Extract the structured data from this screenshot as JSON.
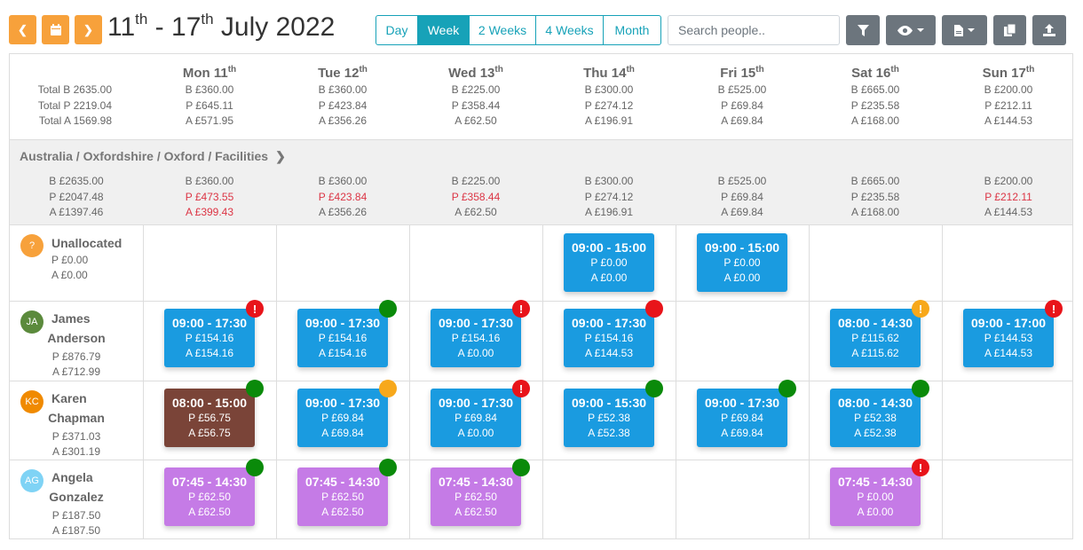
{
  "toolbar": {
    "title_part1": "11",
    "title_sup1": "th",
    "title_mid": " - 17",
    "title_sup2": "th",
    "title_part2": " July 2022",
    "views": [
      "Day",
      "Week",
      "2 Weeks",
      "4 Weeks",
      "Month"
    ],
    "active_view": "Week",
    "search_placeholder": "Search people.."
  },
  "totals": {
    "label": [
      "Total B 2635.00",
      "Total P 2219.04",
      "Total A 1569.98"
    ],
    "days": [
      {
        "name": "Mon 11",
        "sup": "th",
        "b": "B £360.00",
        "p": "P £645.11",
        "a": "A £571.95"
      },
      {
        "name": "Tue 12",
        "sup": "th",
        "b": "B £360.00",
        "p": "P £423.84",
        "a": "A £356.26"
      },
      {
        "name": "Wed 13",
        "sup": "th",
        "b": "B £225.00",
        "p": "P £358.44",
        "a": "A £62.50"
      },
      {
        "name": "Thu 14",
        "sup": "th",
        "b": "B £300.00",
        "p": "P £274.12",
        "a": "A £196.91"
      },
      {
        "name": "Fri 15",
        "sup": "th",
        "b": "B £525.00",
        "p": "P £69.84",
        "a": "A £69.84"
      },
      {
        "name": "Sat 16",
        "sup": "th",
        "b": "B £665.00",
        "p": "P £235.58",
        "a": "A £168.00"
      },
      {
        "name": "Sun 17",
        "sup": "th",
        "b": "B £200.00",
        "p": "P £212.11",
        "a": "A £144.53"
      }
    ]
  },
  "group": {
    "path": "Australia / Oxfordshire / Oxford / Facilities",
    "label": [
      "B £2635.00",
      "P £2047.48",
      "A £1397.46"
    ],
    "days": [
      {
        "b": "B £360.00",
        "p": "P £473.55",
        "a": "A £399.43",
        "p_red": true,
        "a_red": true
      },
      {
        "b": "B £360.00",
        "p": "P £423.84",
        "a": "A £356.26",
        "p_red": true,
        "a_red": false
      },
      {
        "b": "B £225.00",
        "p": "P £358.44",
        "a": "A £62.50",
        "p_red": true,
        "a_red": false
      },
      {
        "b": "B £300.00",
        "p": "P £274.12",
        "a": "A £196.91",
        "p_red": false,
        "a_red": false
      },
      {
        "b": "B £525.00",
        "p": "P £69.84",
        "a": "A £69.84",
        "p_red": false,
        "a_red": false
      },
      {
        "b": "B £665.00",
        "p": "P £235.58",
        "a": "A £168.00",
        "p_red": false,
        "a_red": false
      },
      {
        "b": "B £200.00",
        "p": "P £212.11",
        "a": "A £144.53",
        "p_red": true,
        "a_red": false
      }
    ]
  },
  "people": [
    {
      "initials": "?",
      "avatar_color": "#f7a13b",
      "name1": "Unallocated",
      "name2": "",
      "p": "P £0.00",
      "a": "A £0.00",
      "shifts": [
        {
          "day": 3,
          "time": "09:00 - 15:00",
          "p": "P £0.00",
          "a": "A £0.00",
          "color": "#1a9be0",
          "badge": null
        },
        {
          "day": 4,
          "time": "09:00 - 15:00",
          "p": "P £0.00",
          "a": "A £0.00",
          "color": "#1a9be0",
          "badge": null
        }
      ]
    },
    {
      "initials": "JA",
      "avatar_color": "#5b8a3c",
      "name1": "James",
      "name2": "Anderson",
      "p": "P £876.79",
      "a": "A £712.99",
      "shifts": [
        {
          "day": 0,
          "time": "09:00 - 17:30",
          "p": "P £154.16",
          "a": "A £154.16",
          "color": "#1a9be0",
          "badge": "red-alert"
        },
        {
          "day": 1,
          "time": "09:00 - 17:30",
          "p": "P £154.16",
          "a": "A £154.16",
          "color": "#1a9be0",
          "badge": "green"
        },
        {
          "day": 2,
          "time": "09:00 - 17:30",
          "p": "P £154.16",
          "a": "A £0.00",
          "color": "#1a9be0",
          "badge": "red-alert"
        },
        {
          "day": 3,
          "time": "09:00 - 17:30",
          "p": "P £154.16",
          "a": "A £144.53",
          "color": "#1a9be0",
          "badge": "red"
        },
        {
          "day": 5,
          "time": "08:00 - 14:30",
          "p": "P £115.62",
          "a": "A £115.62",
          "color": "#1a9be0",
          "badge": "orange-alert"
        },
        {
          "day": 6,
          "time": "09:00 - 17:00",
          "p": "P £144.53",
          "a": "A £144.53",
          "color": "#1a9be0",
          "badge": "red-alert"
        }
      ]
    },
    {
      "initials": "KC",
      "avatar_color": "#f08a00",
      "name1": "Karen",
      "name2": "Chapman",
      "p": "P £371.03",
      "a": "A £301.19",
      "shifts": [
        {
          "day": 0,
          "time": "08:00 - 15:00",
          "p": "P £56.75",
          "a": "A £56.75",
          "color": "#7a4438",
          "badge": "green"
        },
        {
          "day": 1,
          "time": "09:00 - 17:30",
          "p": "P £69.84",
          "a": "A £69.84",
          "color": "#1a9be0",
          "badge": "orange"
        },
        {
          "day": 2,
          "time": "09:00 - 17:30",
          "p": "P £69.84",
          "a": "A £0.00",
          "color": "#1a9be0",
          "badge": "red-alert"
        },
        {
          "day": 3,
          "time": "09:00 - 15:30",
          "p": "P £52.38",
          "a": "A £52.38",
          "color": "#1a9be0",
          "badge": "green"
        },
        {
          "day": 4,
          "time": "09:00 - 17:30",
          "p": "P £69.84",
          "a": "A £69.84",
          "color": "#1a9be0",
          "badge": "green"
        },
        {
          "day": 5,
          "time": "08:00 - 14:30",
          "p": "P £52.38",
          "a": "A £52.38",
          "color": "#1a9be0",
          "badge": "green"
        }
      ]
    },
    {
      "initials": "AG",
      "avatar_color": "#7fd3f5",
      "name1": "Angela",
      "name2": "Gonzalez",
      "p": "P £187.50",
      "a": "A £187.50",
      "shifts": [
        {
          "day": 0,
          "time": "07:45 - 14:30",
          "p": "P £62.50",
          "a": "A £62.50",
          "color": "#c57be6",
          "badge": "green"
        },
        {
          "day": 1,
          "time": "07:45 - 14:30",
          "p": "P £62.50",
          "a": "A £62.50",
          "color": "#c57be6",
          "badge": "green"
        },
        {
          "day": 2,
          "time": "07:45 - 14:30",
          "p": "P £62.50",
          "a": "A £62.50",
          "color": "#c57be6",
          "badge": "green"
        },
        {
          "day": 5,
          "time": "07:45 - 14:30",
          "p": "P £0.00",
          "a": "A £0.00",
          "color": "#c57be6",
          "badge": "red-alert"
        }
      ]
    }
  ],
  "badge_colors": {
    "green": "#0a8a0a",
    "red": "#e8141a",
    "orange": "#f7a81b"
  }
}
